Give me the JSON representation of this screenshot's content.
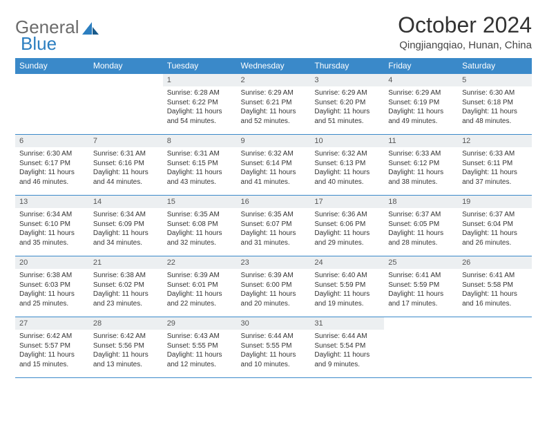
{
  "brand": {
    "part1": "General",
    "part2": "Blue"
  },
  "title": "October 2024",
  "location": "Qingjiangqiao, Hunan, China",
  "colors": {
    "header_bg": "#3a89c9",
    "header_text": "#ffffff",
    "daynum_bg": "#eceff1",
    "border": "#3a89c9",
    "body_text": "#333333",
    "logo_gray": "#6b6b6b",
    "logo_blue": "#2b7ec0"
  },
  "weekdays": [
    "Sunday",
    "Monday",
    "Tuesday",
    "Wednesday",
    "Thursday",
    "Friday",
    "Saturday"
  ],
  "weeks": [
    [
      {
        "empty": true
      },
      {
        "empty": true
      },
      {
        "n": "1",
        "sr": "6:28 AM",
        "ss": "6:22 PM",
        "dh": "11",
        "dm": "54"
      },
      {
        "n": "2",
        "sr": "6:29 AM",
        "ss": "6:21 PM",
        "dh": "11",
        "dm": "52"
      },
      {
        "n": "3",
        "sr": "6:29 AM",
        "ss": "6:20 PM",
        "dh": "11",
        "dm": "51"
      },
      {
        "n": "4",
        "sr": "6:29 AM",
        "ss": "6:19 PM",
        "dh": "11",
        "dm": "49"
      },
      {
        "n": "5",
        "sr": "6:30 AM",
        "ss": "6:18 PM",
        "dh": "11",
        "dm": "48"
      }
    ],
    [
      {
        "n": "6",
        "sr": "6:30 AM",
        "ss": "6:17 PM",
        "dh": "11",
        "dm": "46"
      },
      {
        "n": "7",
        "sr": "6:31 AM",
        "ss": "6:16 PM",
        "dh": "11",
        "dm": "44"
      },
      {
        "n": "8",
        "sr": "6:31 AM",
        "ss": "6:15 PM",
        "dh": "11",
        "dm": "43"
      },
      {
        "n": "9",
        "sr": "6:32 AM",
        "ss": "6:14 PM",
        "dh": "11",
        "dm": "41"
      },
      {
        "n": "10",
        "sr": "6:32 AM",
        "ss": "6:13 PM",
        "dh": "11",
        "dm": "40"
      },
      {
        "n": "11",
        "sr": "6:33 AM",
        "ss": "6:12 PM",
        "dh": "11",
        "dm": "38"
      },
      {
        "n": "12",
        "sr": "6:33 AM",
        "ss": "6:11 PM",
        "dh": "11",
        "dm": "37"
      }
    ],
    [
      {
        "n": "13",
        "sr": "6:34 AM",
        "ss": "6:10 PM",
        "dh": "11",
        "dm": "35"
      },
      {
        "n": "14",
        "sr": "6:34 AM",
        "ss": "6:09 PM",
        "dh": "11",
        "dm": "34"
      },
      {
        "n": "15",
        "sr": "6:35 AM",
        "ss": "6:08 PM",
        "dh": "11",
        "dm": "32"
      },
      {
        "n": "16",
        "sr": "6:35 AM",
        "ss": "6:07 PM",
        "dh": "11",
        "dm": "31"
      },
      {
        "n": "17",
        "sr": "6:36 AM",
        "ss": "6:06 PM",
        "dh": "11",
        "dm": "29"
      },
      {
        "n": "18",
        "sr": "6:37 AM",
        "ss": "6:05 PM",
        "dh": "11",
        "dm": "28"
      },
      {
        "n": "19",
        "sr": "6:37 AM",
        "ss": "6:04 PM",
        "dh": "11",
        "dm": "26"
      }
    ],
    [
      {
        "n": "20",
        "sr": "6:38 AM",
        "ss": "6:03 PM",
        "dh": "11",
        "dm": "25"
      },
      {
        "n": "21",
        "sr": "6:38 AM",
        "ss": "6:02 PM",
        "dh": "11",
        "dm": "23"
      },
      {
        "n": "22",
        "sr": "6:39 AM",
        "ss": "6:01 PM",
        "dh": "11",
        "dm": "22"
      },
      {
        "n": "23",
        "sr": "6:39 AM",
        "ss": "6:00 PM",
        "dh": "11",
        "dm": "20"
      },
      {
        "n": "24",
        "sr": "6:40 AM",
        "ss": "5:59 PM",
        "dh": "11",
        "dm": "19"
      },
      {
        "n": "25",
        "sr": "6:41 AM",
        "ss": "5:59 PM",
        "dh": "11",
        "dm": "17"
      },
      {
        "n": "26",
        "sr": "6:41 AM",
        "ss": "5:58 PM",
        "dh": "11",
        "dm": "16"
      }
    ],
    [
      {
        "n": "27",
        "sr": "6:42 AM",
        "ss": "5:57 PM",
        "dh": "11",
        "dm": "15"
      },
      {
        "n": "28",
        "sr": "6:42 AM",
        "ss": "5:56 PM",
        "dh": "11",
        "dm": "13"
      },
      {
        "n": "29",
        "sr": "6:43 AM",
        "ss": "5:55 PM",
        "dh": "11",
        "dm": "12"
      },
      {
        "n": "30",
        "sr": "6:44 AM",
        "ss": "5:55 PM",
        "dh": "11",
        "dm": "10"
      },
      {
        "n": "31",
        "sr": "6:44 AM",
        "ss": "5:54 PM",
        "dh": "11",
        "dm": "9"
      },
      {
        "empty": true
      },
      {
        "empty": true
      }
    ]
  ]
}
